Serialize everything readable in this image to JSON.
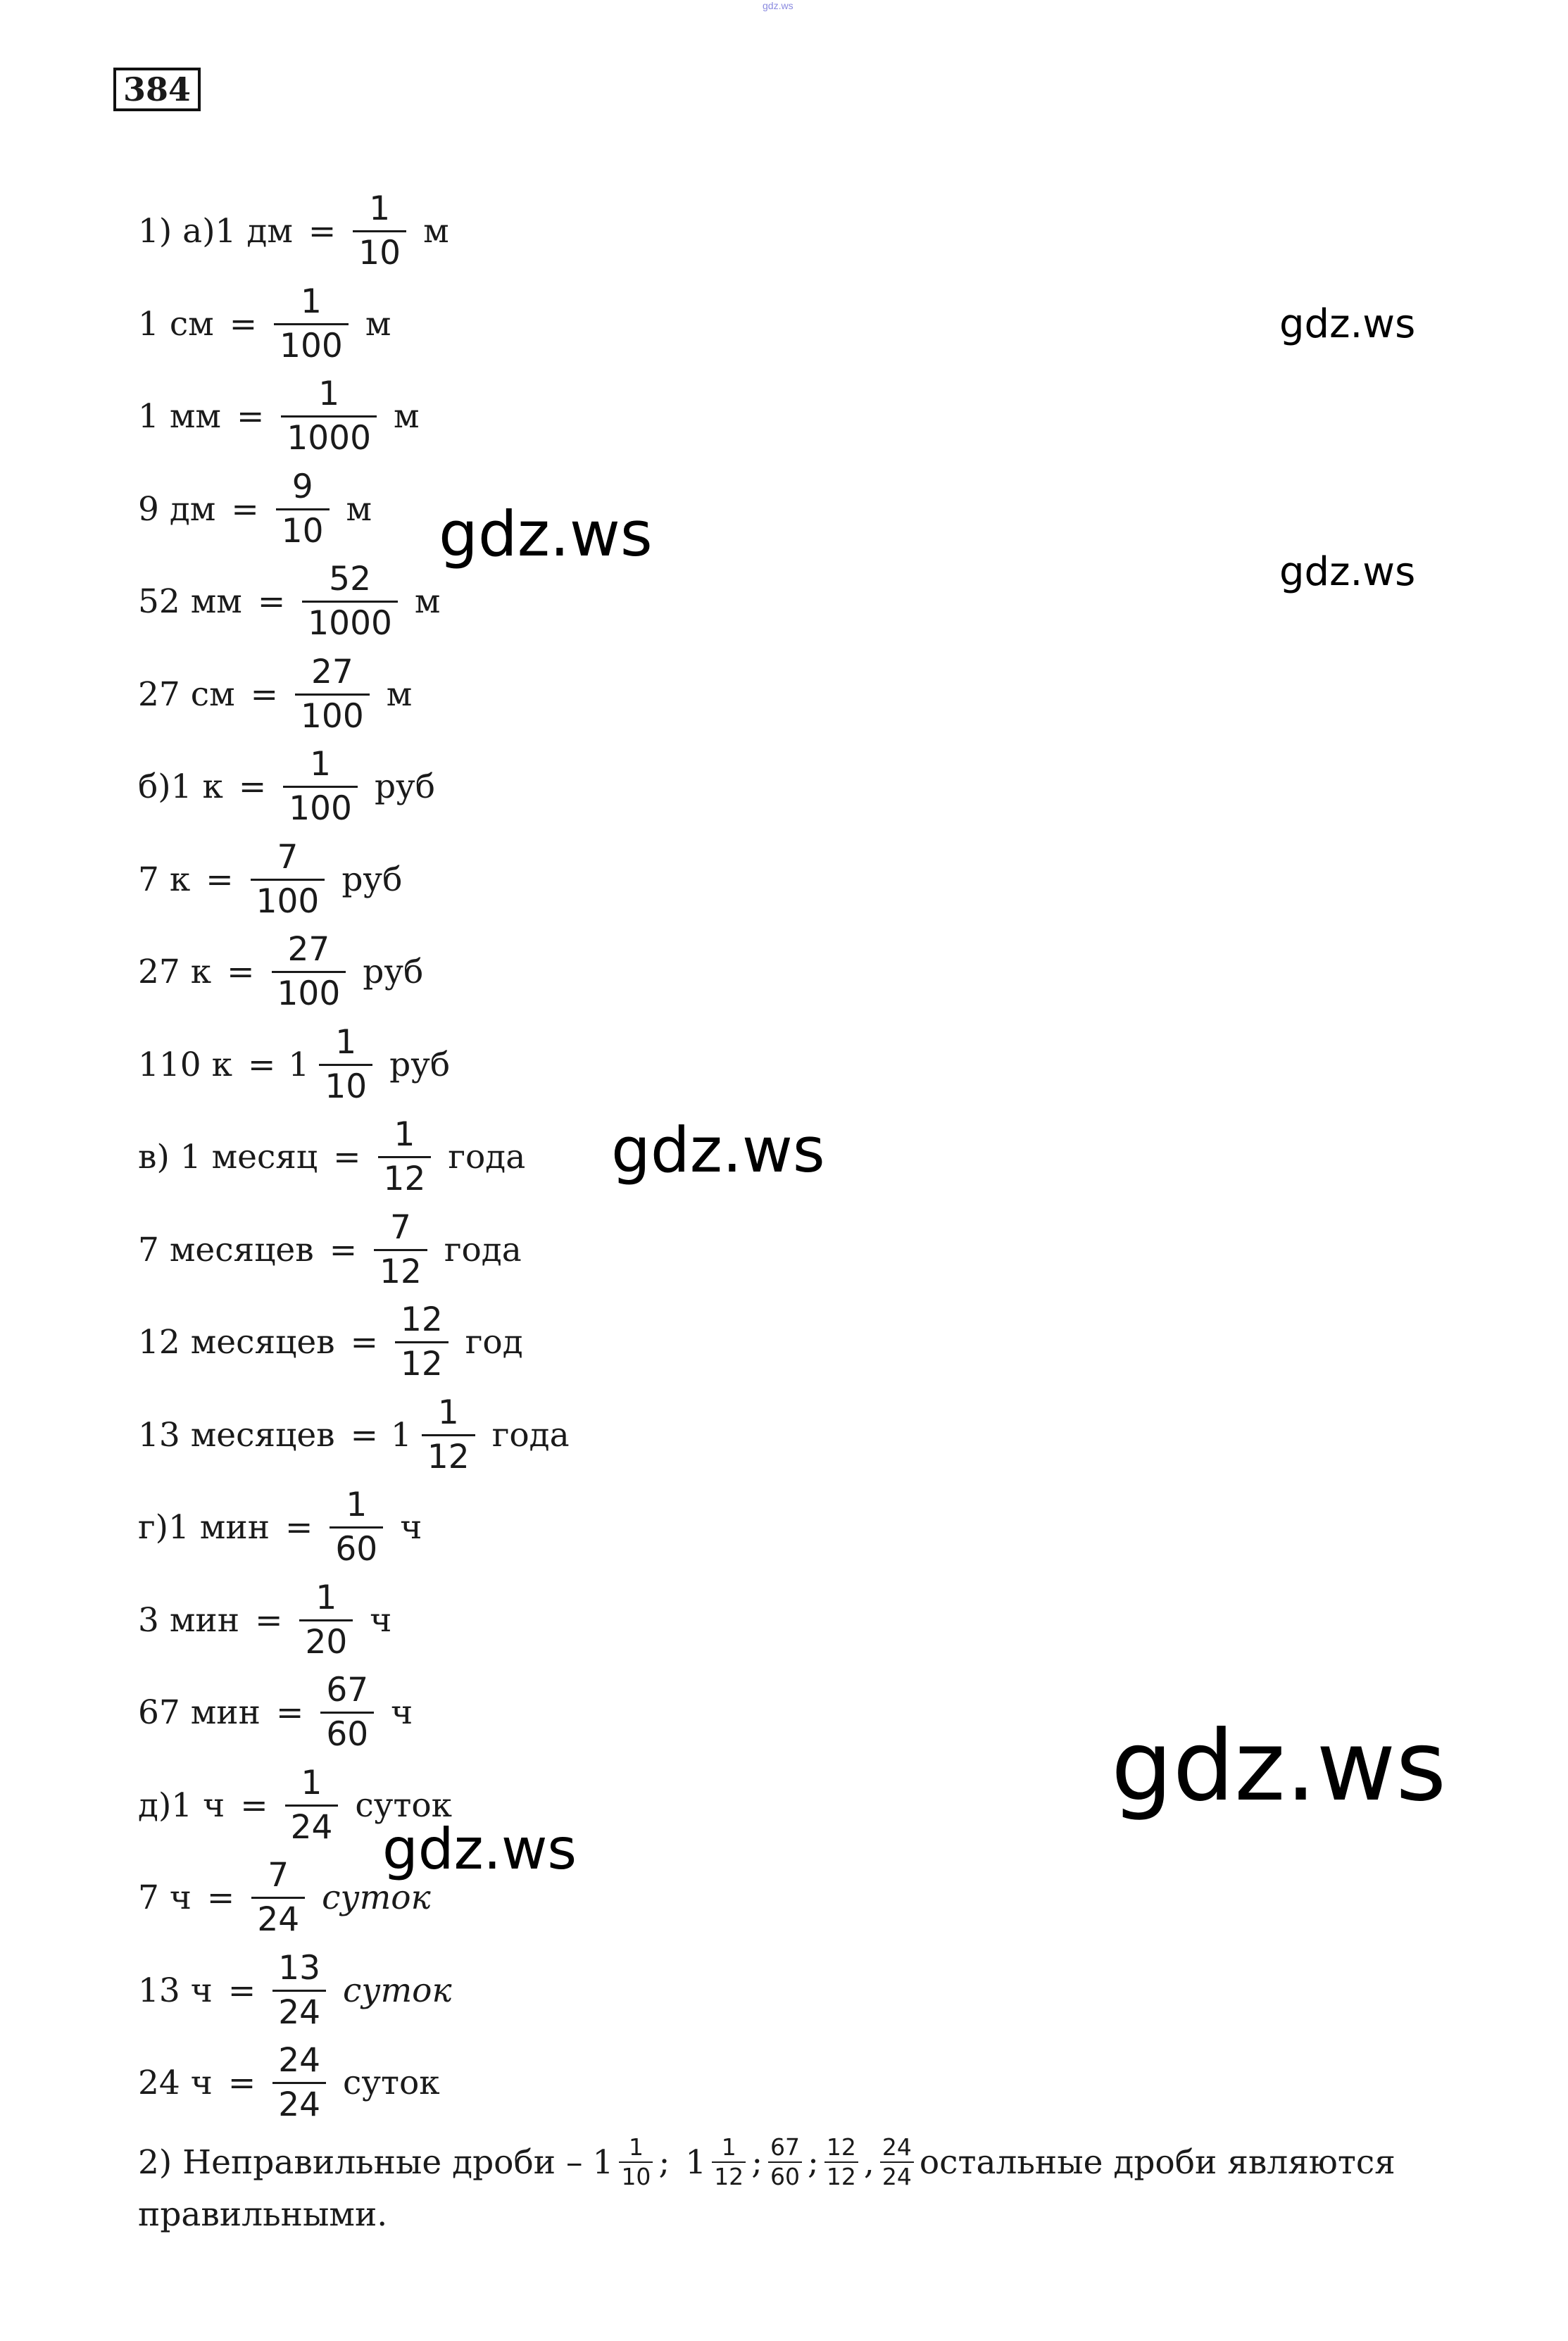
{
  "header_mark": "gdz.ws",
  "exercise_number": "384",
  "rows": [
    {
      "pre": "1) а)1 дм",
      "whole": "",
      "num": "1",
      "den": "10",
      "unit": "м",
      "unit_italic": false
    },
    {
      "pre": "1 см",
      "whole": "",
      "num": "1",
      "den": "100",
      "unit": "м",
      "unit_italic": false
    },
    {
      "pre": "1 мм",
      "whole": "",
      "num": "1",
      "den": "1000",
      "unit": "м",
      "unit_italic": false
    },
    {
      "pre": "9 дм",
      "whole": "",
      "num": "9",
      "den": "10",
      "unit": "м",
      "unit_italic": false
    },
    {
      "pre": "52 мм",
      "whole": "",
      "num": "52",
      "den": "1000",
      "unit": "м",
      "unit_italic": false
    },
    {
      "pre": "27 см",
      "whole": "",
      "num": "27",
      "den": "100",
      "unit": "м",
      "unit_italic": false
    },
    {
      "pre": "б)1 к",
      "whole": "",
      "num": "1",
      "den": "100",
      "unit": "руб",
      "unit_italic": false
    },
    {
      "pre": "7 к",
      "whole": "",
      "num": "7",
      "den": "100",
      "unit": "руб",
      "unit_italic": false
    },
    {
      "pre": "27 к",
      "whole": "",
      "num": "27",
      "den": "100",
      "unit": "руб",
      "unit_italic": false
    },
    {
      "pre": "110 к",
      "whole": "1",
      "num": "1",
      "den": "10",
      "unit": "руб",
      "unit_italic": false
    },
    {
      "pre": "в) 1 месяц",
      "whole": "",
      "num": "1",
      "den": "12",
      "unit": "года",
      "unit_italic": false
    },
    {
      "pre": "7 месяцев",
      "whole": "",
      "num": "7",
      "den": "12",
      "unit": "года",
      "unit_italic": false
    },
    {
      "pre": "12 месяцев",
      "whole": "",
      "num": "12",
      "den": "12",
      "unit": "год",
      "unit_italic": false
    },
    {
      "pre": "13 месяцев",
      "whole": "1",
      "num": "1",
      "den": "12",
      "unit": "года",
      "unit_italic": false
    },
    {
      "pre": "г)1 мин",
      "whole": "",
      "num": "1",
      "den": "60",
      "unit": "ч",
      "unit_italic": false
    },
    {
      "pre": "3 мин",
      "whole": "",
      "num": "1",
      "den": "20",
      "unit": "ч",
      "unit_italic": false
    },
    {
      "pre": "67 мин",
      "whole": "",
      "num": "67",
      "den": "60",
      "unit": "ч",
      "unit_italic": false
    },
    {
      "pre": "д)1 ч",
      "whole": "",
      "num": "1",
      "den": "24",
      "unit": "суток",
      "unit_italic": false
    },
    {
      "pre": "7 ч",
      "whole": "",
      "num": "7",
      "den": "24",
      "unit": "суток",
      "unit_italic": true
    },
    {
      "pre": "13 ч",
      "whole": "",
      "num": "13",
      "den": "24",
      "unit": "суток",
      "unit_italic": true
    },
    {
      "pre": "24 ч",
      "whole": "",
      "num": "24",
      "den": "24",
      "unit": "суток",
      "unit_italic": false
    }
  ],
  "part2": {
    "lead": "2) Неправильные дроби –",
    "fractions": [
      {
        "whole": "1",
        "num": "1",
        "den": "10",
        "sep": ";"
      },
      {
        "whole": "1",
        "num": "1",
        "den": "12",
        "sep": ";"
      },
      {
        "whole": "",
        "num": "67",
        "den": "60",
        "sep": ";"
      },
      {
        "whole": "",
        "num": "12",
        "den": "12",
        "sep": ","
      },
      {
        "whole": "",
        "num": "24",
        "den": "24",
        "sep": ""
      }
    ],
    "tail": "остальные дроби являются",
    "tail2": "правильными."
  },
  "watermark": "gdz.ws"
}
